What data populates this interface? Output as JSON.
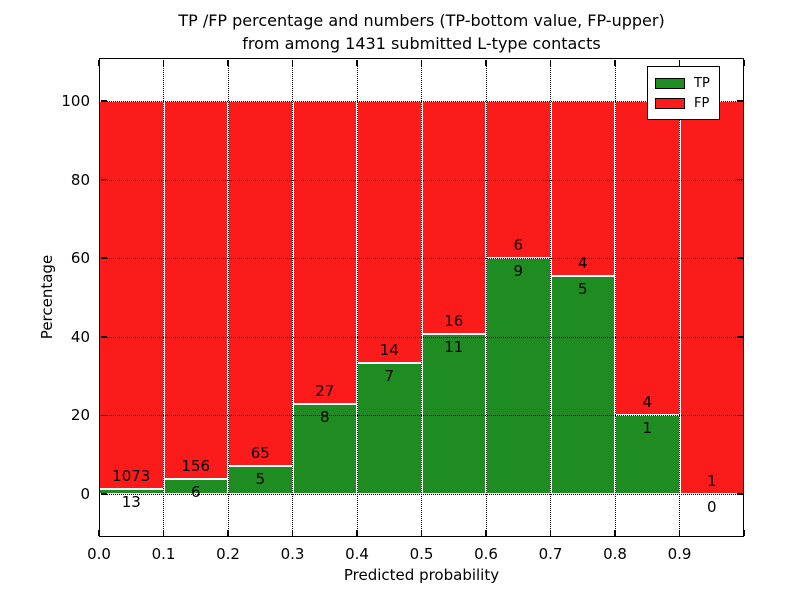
{
  "chart_data": {
    "type": "bar",
    "stacked": true,
    "title_lines": [
      "TP /FP percentage and numbers (TP-bottom value, FP-upper)",
      "from among 1431 submitted L-type contacts"
    ],
    "xlabel": "Predicted probability",
    "ylabel": "Percentage",
    "total_submitted": 1431,
    "bin_edges": [
      0.0,
      0.1,
      0.2,
      0.3,
      0.4,
      0.5,
      0.6,
      0.7,
      0.8,
      0.9,
      1.0
    ],
    "categories": [
      "0.0-0.1",
      "0.1-0.2",
      "0.2-0.3",
      "0.3-0.4",
      "0.4-0.5",
      "0.5-0.6",
      "0.6-0.7",
      "0.7-0.8",
      "0.8-0.9",
      "0.9-1.0"
    ],
    "series": [
      {
        "name": "TP",
        "color": "#1f8c21",
        "counts": [
          13,
          6,
          5,
          8,
          7,
          11,
          9,
          5,
          1,
          0
        ]
      },
      {
        "name": "FP",
        "color": "#fb1b1b",
        "counts": [
          1073,
          156,
          65,
          27,
          14,
          16,
          6,
          4,
          4,
          1
        ]
      }
    ],
    "tp_percent": [
      1.2,
      3.7,
      7.1,
      22.9,
      33.3,
      40.7,
      60.0,
      55.6,
      20.0,
      0.0
    ],
    "xticks": [
      "0.0",
      "0.1",
      "0.2",
      "0.3",
      "0.4",
      "0.5",
      "0.6",
      "0.7",
      "0.8",
      "0.9"
    ],
    "yticks": [
      0,
      20,
      40,
      60,
      80,
      100
    ],
    "xlim": [
      0.0,
      1.0
    ],
    "ylim": [
      -11,
      111
    ],
    "grid": true,
    "grid_style": "dotted",
    "bar_edge_color": "#ffffff",
    "legend": {
      "position": "upper right",
      "entries": [
        "TP",
        "FP"
      ]
    }
  }
}
